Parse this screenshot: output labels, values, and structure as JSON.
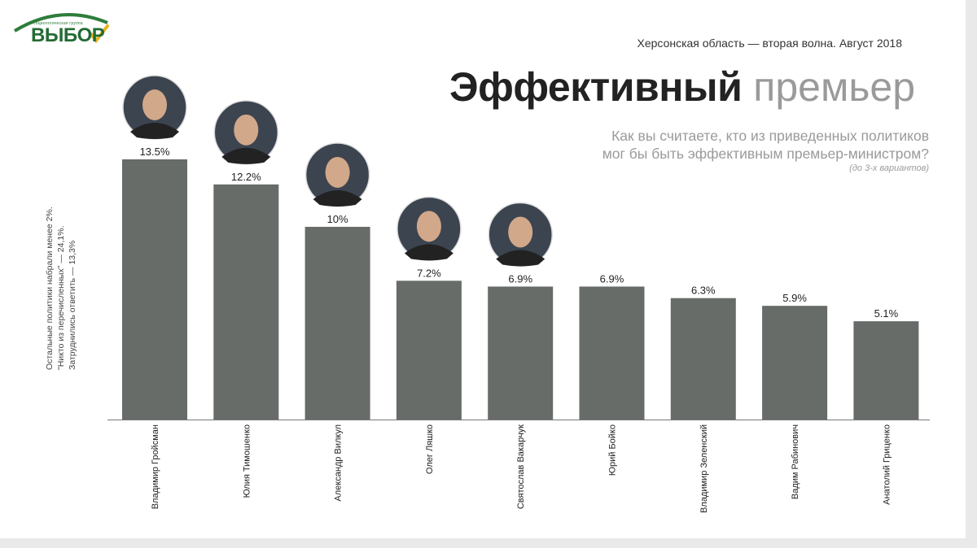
{
  "logo": {
    "small_text": "социологическая группа",
    "text": "ВЫБОР"
  },
  "header": {
    "subtitle": "Херсонская область — вторая волна. Август 2018",
    "title_bold": "Эффективный",
    "title_light": "премьер",
    "question_line1": "Как вы считаете, кто из приведенных политиков",
    "question_line2": "мог бы быть эффективным премьер-министром?",
    "question_note": "(до 3-х вариантов)"
  },
  "sidenote": {
    "line1": "Остальные политики набрали менее 2%.",
    "line2": "\"Никто из перечисленных\" — 24,1%.",
    "line3": "Затруднились ответить — 13,3%"
  },
  "colors": {
    "bar": "#676c69",
    "accent": "#236b34"
  },
  "chart_data": {
    "type": "bar",
    "categories": [
      "Владимир Гройсман",
      "Юлия Тимошенко",
      "Александр Вилкул",
      "Олег Ляшко",
      "Святослав Вакарчук",
      "Юрий Бойко",
      "Владимир Зеленский",
      "Вадим Рабинович",
      "Анатолий Гриценко"
    ],
    "values": [
      13.5,
      12.2,
      10,
      7.2,
      6.9,
      6.9,
      6.3,
      5.9,
      5.1
    ],
    "value_labels": [
      "13.5%",
      "12.2%",
      "10%",
      "7.2%",
      "6.9%",
      "6.9%",
      "6.3%",
      "5.9%",
      "5.1%"
    ],
    "photos_for": [
      "Владимир Гройсман",
      "Юлия Тимошенко",
      "Александр Вилкул",
      "Олег Ляшко",
      "Святослав Вакарчук"
    ],
    "ylim": [
      0,
      13.5
    ],
    "grid": false,
    "legend": "none"
  }
}
